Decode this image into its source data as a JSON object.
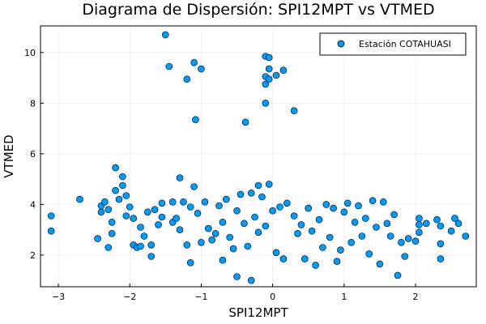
{
  "chart_data": {
    "type": "scatter",
    "title": "Diagrama de Dispersión: SPI12MPT vs VTMED",
    "xlabel": "SPI12MPT",
    "ylabel": "VTMED",
    "xlim": [
      -3.25,
      2.85
    ],
    "ylim": [
      0.75,
      11.05
    ],
    "xticks": [
      -3,
      -2,
      -1,
      0,
      1,
      2
    ],
    "yticks": [
      2,
      4,
      6,
      8,
      10
    ],
    "xtick_labels": [
      "−3",
      "−2",
      "−1",
      "0",
      "1",
      "2"
    ],
    "ytick_labels": [
      "2",
      "4",
      "6",
      "8",
      "10"
    ],
    "grid": true,
    "legend_position": "top-right",
    "marker_color": "#009AFA",
    "series": [
      {
        "name": "Estación COTAHUASI",
        "points": [
          [
            -3.1,
            3.55
          ],
          [
            -3.1,
            2.95
          ],
          [
            -2.7,
            4.2
          ],
          [
            -2.45,
            2.65
          ],
          [
            -2.4,
            3.95
          ],
          [
            -2.4,
            3.7
          ],
          [
            -2.35,
            4.1
          ],
          [
            -2.3,
            3.8
          ],
          [
            -2.3,
            2.3
          ],
          [
            -2.25,
            3.3
          ],
          [
            -2.25,
            2.85
          ],
          [
            -2.2,
            5.45
          ],
          [
            -2.2,
            4.55
          ],
          [
            -2.15,
            4.2
          ],
          [
            -2.1,
            5.1
          ],
          [
            -2.1,
            4.75
          ],
          [
            -2.05,
            3.55
          ],
          [
            -2.05,
            4.35
          ],
          [
            -2.0,
            3.9
          ],
          [
            -1.95,
            3.45
          ],
          [
            -1.95,
            2.4
          ],
          [
            -1.9,
            2.3
          ],
          [
            -1.85,
            2.35
          ],
          [
            -1.85,
            3.1
          ],
          [
            -1.8,
            2.75
          ],
          [
            -1.75,
            3.7
          ],
          [
            -1.7,
            2.4
          ],
          [
            -1.7,
            1.95
          ],
          [
            -1.65,
            3.8
          ],
          [
            -1.6,
            3.2
          ],
          [
            -1.55,
            3.5
          ],
          [
            -1.55,
            4.05
          ],
          [
            -1.5,
            10.7
          ],
          [
            -1.45,
            9.45
          ],
          [
            -1.4,
            4.1
          ],
          [
            -1.4,
            3.3
          ],
          [
            -1.35,
            3.45
          ],
          [
            -1.3,
            3.0
          ],
          [
            -1.3,
            5.05
          ],
          [
            -1.25,
            4.1
          ],
          [
            -1.2,
            8.95
          ],
          [
            -1.2,
            2.4
          ],
          [
            -1.15,
            3.9
          ],
          [
            -1.15,
            1.7
          ],
          [
            -1.1,
            9.6
          ],
          [
            -1.1,
            4.7
          ],
          [
            -1.08,
            7.35
          ],
          [
            -1.05,
            3.65
          ],
          [
            -1.0,
            9.35
          ],
          [
            -1.0,
            2.5
          ],
          [
            -0.95,
            4.1
          ],
          [
            -0.9,
            3.05
          ],
          [
            -0.85,
            2.6
          ],
          [
            -0.8,
            2.85
          ],
          [
            -0.75,
            3.95
          ],
          [
            -0.7,
            3.3
          ],
          [
            -0.7,
            1.8
          ],
          [
            -0.65,
            4.2
          ],
          [
            -0.6,
            2.7
          ],
          [
            -0.55,
            2.25
          ],
          [
            -0.5,
            3.75
          ],
          [
            -0.5,
            1.15
          ],
          [
            -0.45,
            4.4
          ],
          [
            -0.4,
            3.25
          ],
          [
            -0.38,
            7.25
          ],
          [
            -0.35,
            2.35
          ],
          [
            -0.3,
            4.45
          ],
          [
            -0.3,
            1.0
          ],
          [
            -0.25,
            3.5
          ],
          [
            -0.2,
            4.75
          ],
          [
            -0.2,
            2.9
          ],
          [
            -0.15,
            4.3
          ],
          [
            -0.1,
            9.85
          ],
          [
            -0.1,
            9.05
          ],
          [
            -0.1,
            8.75
          ],
          [
            -0.1,
            8.0
          ],
          [
            -0.1,
            3.15
          ],
          [
            -0.05,
            9.8
          ],
          [
            -0.05,
            9.35
          ],
          [
            -0.05,
            8.95
          ],
          [
            -0.05,
            4.8
          ],
          [
            0.0,
            3.75
          ],
          [
            0.05,
            2.1
          ],
          [
            0.05,
            9.1
          ],
          [
            0.1,
            3.9
          ],
          [
            0.15,
            9.3
          ],
          [
            0.15,
            1.85
          ],
          [
            0.2,
            4.05
          ],
          [
            0.3,
            7.7
          ],
          [
            0.3,
            3.55
          ],
          [
            0.35,
            2.85
          ],
          [
            0.4,
            3.2
          ],
          [
            0.45,
            1.85
          ],
          [
            0.5,
            3.85
          ],
          [
            0.55,
            2.95
          ],
          [
            0.6,
            1.6
          ],
          [
            0.65,
            3.4
          ],
          [
            0.7,
            2.3
          ],
          [
            0.75,
            4.0
          ],
          [
            0.8,
            2.7
          ],
          [
            0.85,
            3.85
          ],
          [
            0.9,
            1.75
          ],
          [
            0.95,
            2.2
          ],
          [
            1.0,
            3.7
          ],
          [
            1.05,
            4.05
          ],
          [
            1.1,
            2.5
          ],
          [
            1.15,
            3.3
          ],
          [
            1.2,
            3.95
          ],
          [
            1.25,
            2.75
          ],
          [
            1.3,
            3.45
          ],
          [
            1.35,
            2.05
          ],
          [
            1.4,
            4.15
          ],
          [
            1.45,
            3.1
          ],
          [
            1.5,
            1.65
          ],
          [
            1.55,
            4.1
          ],
          [
            1.6,
            3.25
          ],
          [
            1.65,
            2.75
          ],
          [
            1.7,
            3.6
          ],
          [
            1.75,
            1.2
          ],
          [
            1.8,
            2.5
          ],
          [
            1.85,
            1.95
          ],
          [
            1.9,
            2.65
          ],
          [
            2.0,
            2.55
          ],
          [
            2.05,
            3.45
          ],
          [
            2.05,
            3.2
          ],
          [
            2.05,
            2.9
          ],
          [
            2.15,
            3.25
          ],
          [
            2.3,
            3.4
          ],
          [
            2.35,
            2.45
          ],
          [
            2.35,
            1.85
          ],
          [
            2.35,
            3.15
          ],
          [
            2.5,
            2.95
          ],
          [
            2.55,
            3.45
          ],
          [
            2.6,
            3.25
          ],
          [
            2.7,
            2.75
          ]
        ]
      }
    ]
  }
}
